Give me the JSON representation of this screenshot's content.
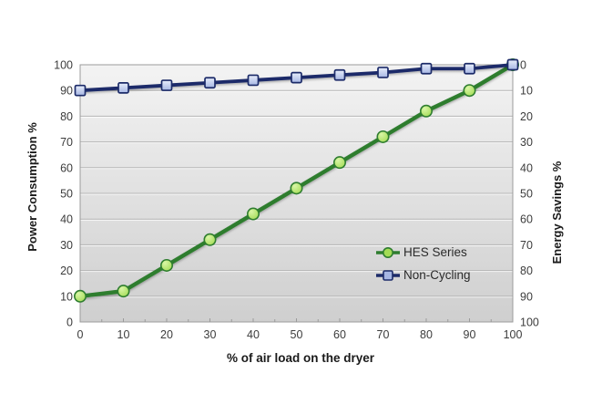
{
  "chart_data": {
    "type": "line",
    "x": [
      0,
      10,
      20,
      30,
      40,
      50,
      60,
      70,
      80,
      90,
      100
    ],
    "series": [
      {
        "name": "HES Series",
        "values": [
          10,
          12,
          22,
          32,
          42,
          52,
          62,
          72,
          82,
          90,
          100
        ],
        "color": "#2e7d2f",
        "marker": "circle",
        "marker_fill_light": "#d9f6a6",
        "marker_fill_dark": "#a3dc55"
      },
      {
        "name": "Non-Cycling",
        "values": [
          90,
          91,
          92,
          93,
          94,
          95,
          96,
          97,
          98.5,
          98.5,
          100
        ],
        "color": "#1c2b69",
        "marker": "square",
        "marker_fill_light": "#e8eefb",
        "marker_fill_dark": "#a6b6e3"
      }
    ],
    "xlabel": "% of air load on the dryer",
    "ylabel_left": "Power Consumption %",
    "ylabel_right": "Energy Savings %",
    "xlim": [
      0,
      100
    ],
    "ylim": [
      0,
      100
    ],
    "x_ticks": [
      0,
      10,
      20,
      30,
      40,
      50,
      60,
      70,
      80,
      90,
      100
    ],
    "y_ticks_left": [
      100,
      90,
      80,
      70,
      60,
      50,
      40,
      30,
      20,
      10,
      0
    ],
    "y_ticks_right": [
      0,
      10,
      20,
      30,
      40,
      50,
      60,
      70,
      80,
      90,
      100
    ],
    "grid": true,
    "legend_position": "inside-right",
    "plot_bg_top": "#f3f3f3",
    "plot_bg_bottom": "#cfcfcf",
    "grid_color": "#b5b5b5",
    "border_color": "#9b9b9b",
    "tick_text_color": "#3c3c3c"
  }
}
